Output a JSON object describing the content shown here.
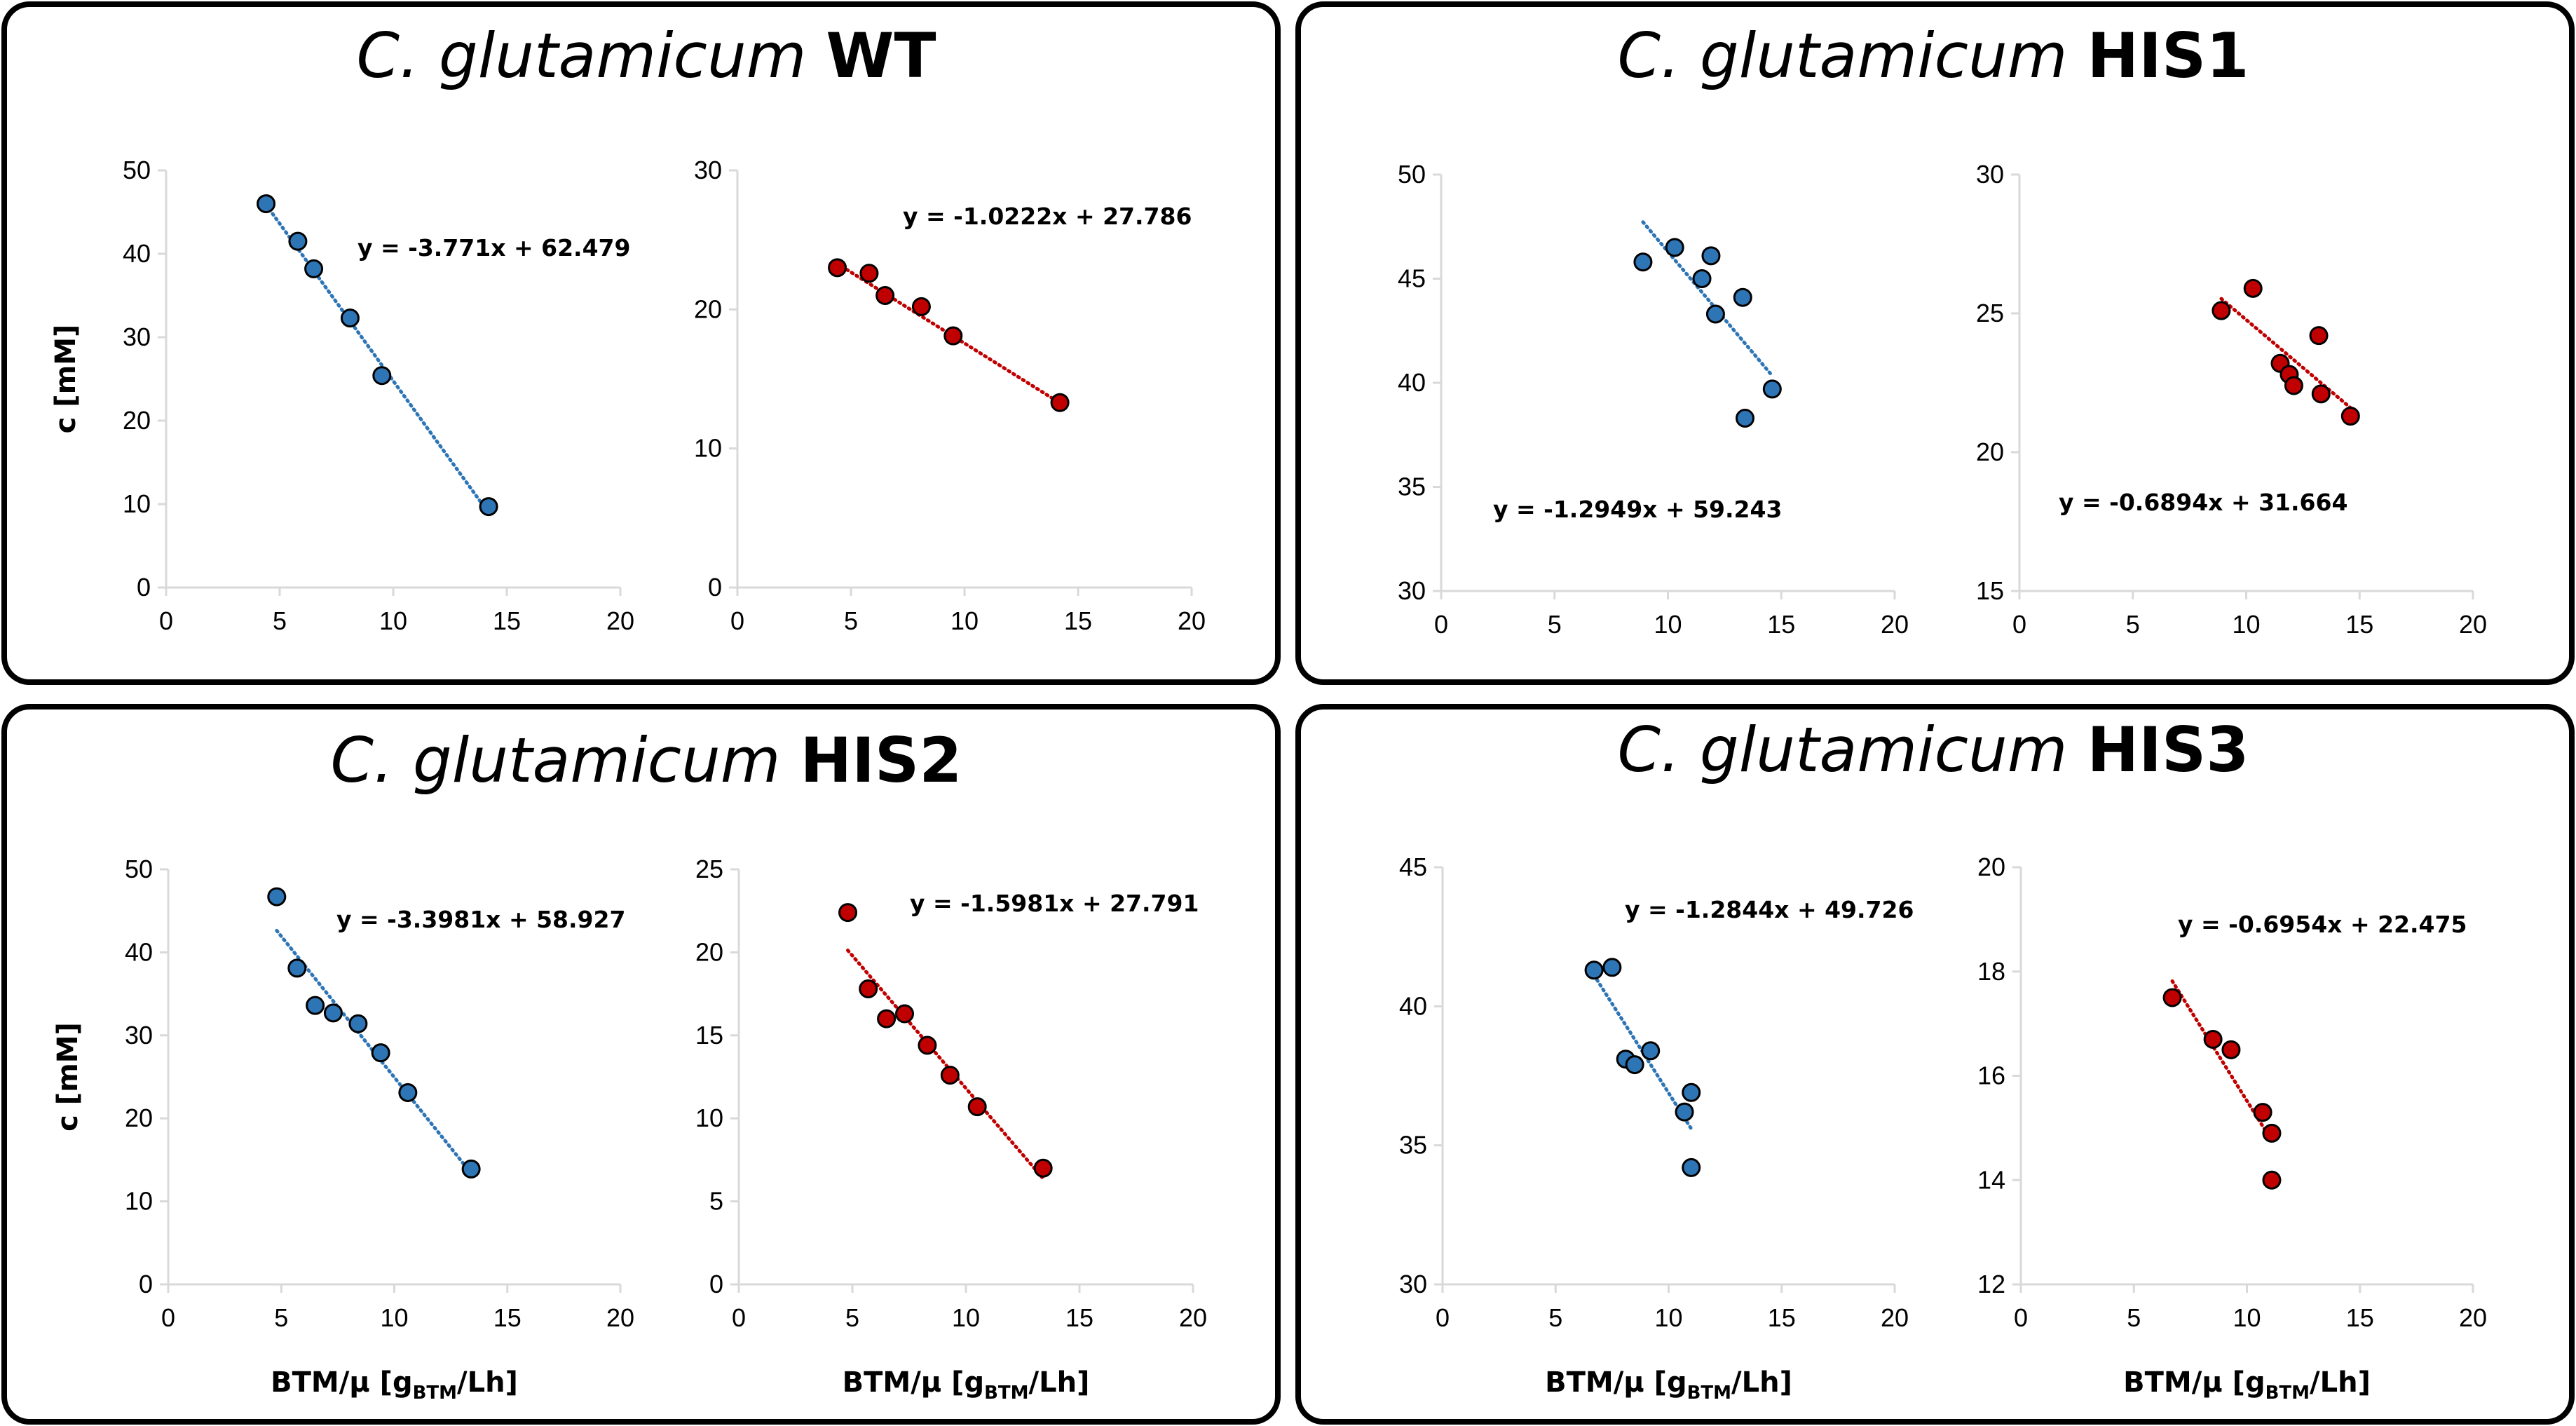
{
  "colors": {
    "blue": "#2E75B6",
    "red": "#C00000",
    "axis": "#D9D9D9",
    "text": "#000000"
  },
  "chart_data": [
    {
      "type": "scatter",
      "species": "C. glutamicum",
      "strain": "WT",
      "ylabel": "c [mM]",
      "xlabel_main": "BTM/μ [g",
      "xlabel_sub": "BTM",
      "xlabel_tail": "/Lh]",
      "subplots": [
        {
          "color": "blue",
          "xlim": [
            0,
            20
          ],
          "ylim": [
            0,
            50
          ],
          "xticks": [
            0,
            5,
            10,
            15,
            20
          ],
          "yticks": [
            0,
            10,
            20,
            30,
            40,
            50
          ],
          "points": [
            [
              4.4,
              46.0
            ],
            [
              5.8,
              41.5
            ],
            [
              6.5,
              38.2
            ],
            [
              8.1,
              32.3
            ],
            [
              9.5,
              25.4
            ],
            [
              14.2,
              9.7
            ]
          ],
          "trend": {
            "slope": -3.771,
            "intercept": 62.479,
            "x0": 4.4,
            "x1": 14.2
          },
          "equation": "y = -3.771x + 62.479"
        },
        {
          "color": "red",
          "xlim": [
            0,
            20
          ],
          "ylim": [
            0,
            30
          ],
          "xticks": [
            0,
            5,
            10,
            15,
            20
          ],
          "yticks": [
            0,
            10,
            20,
            30
          ],
          "points": [
            [
              4.4,
              23.0
            ],
            [
              5.8,
              22.6
            ],
            [
              6.5,
              21.0
            ],
            [
              8.1,
              20.2
            ],
            [
              9.5,
              18.1
            ],
            [
              14.2,
              13.3
            ]
          ],
          "trend": {
            "slope": -1.0222,
            "intercept": 27.786,
            "x0": 4.4,
            "x1": 14.2
          },
          "equation": "y = -1.0222x + 27.786"
        }
      ]
    },
    {
      "type": "scatter",
      "species": "C. glutamicum",
      "strain": "HIS1",
      "ylabel": "",
      "xlabel_main": "",
      "xlabel_sub": "",
      "xlabel_tail": "",
      "subplots": [
        {
          "color": "blue",
          "xlim": [
            0,
            20
          ],
          "ylim": [
            30,
            50
          ],
          "xticks": [
            0,
            5,
            10,
            15,
            20
          ],
          "yticks": [
            30,
            35,
            40,
            45,
            50
          ],
          "points": [
            [
              8.9,
              45.8
            ],
            [
              10.3,
              46.5
            ],
            [
              11.5,
              45.0
            ],
            [
              11.9,
              46.1
            ],
            [
              12.1,
              43.3
            ],
            [
              13.3,
              44.1
            ],
            [
              13.4,
              38.3
            ],
            [
              14.6,
              39.7
            ]
          ],
          "trend": {
            "slope": -1.2949,
            "intercept": 59.243,
            "x0": 8.9,
            "x1": 14.6
          },
          "equation": "y = -1.2949x + 59.243"
        },
        {
          "color": "red",
          "xlim": [
            0,
            20
          ],
          "ylim": [
            15,
            30
          ],
          "xticks": [
            0,
            5,
            10,
            15,
            20
          ],
          "yticks": [
            15,
            20,
            25,
            30
          ],
          "points": [
            [
              8.9,
              25.1
            ],
            [
              10.3,
              25.9
            ],
            [
              11.5,
              23.2
            ],
            [
              11.9,
              22.8
            ],
            [
              12.1,
              22.4
            ],
            [
              13.2,
              24.2
            ],
            [
              13.3,
              22.1
            ],
            [
              14.6,
              21.3
            ]
          ],
          "trend": {
            "slope": -0.6894,
            "intercept": 31.664,
            "x0": 8.9,
            "x1": 14.6
          },
          "equation": "y = -0.6894x + 31.664"
        }
      ]
    },
    {
      "type": "scatter",
      "species": "C. glutamicum",
      "strain": "HIS2",
      "ylabel": "c [mM]",
      "xlabel_main": "BTM/μ [g",
      "xlabel_sub": "BTM",
      "xlabel_tail": "/Lh]",
      "subplots": [
        {
          "color": "blue",
          "xlim": [
            0,
            20
          ],
          "ylim": [
            0,
            50
          ],
          "xticks": [
            0,
            5,
            10,
            15,
            20
          ],
          "yticks": [
            0,
            10,
            20,
            30,
            40,
            50
          ],
          "points": [
            [
              4.8,
              46.7
            ],
            [
              5.7,
              38.1
            ],
            [
              6.5,
              33.6
            ],
            [
              7.3,
              32.7
            ],
            [
              8.4,
              31.4
            ],
            [
              9.4,
              27.9
            ],
            [
              10.6,
              23.1
            ],
            [
              13.4,
              13.9
            ]
          ],
          "trend": {
            "slope": -3.3981,
            "intercept": 58.927,
            "x0": 4.8,
            "x1": 13.4
          },
          "equation": "y = -3.3981x + 58.927"
        },
        {
          "color": "red",
          "xlim": [
            0,
            20
          ],
          "ylim": [
            0,
            25
          ],
          "xticks": [
            0,
            5,
            10,
            15,
            20
          ],
          "yticks": [
            0,
            5,
            10,
            15,
            20,
            25
          ],
          "points": [
            [
              4.8,
              22.4
            ],
            [
              5.7,
              17.8
            ],
            [
              6.5,
              16.0
            ],
            [
              7.3,
              16.3
            ],
            [
              8.3,
              14.4
            ],
            [
              9.3,
              12.6
            ],
            [
              10.5,
              10.7
            ],
            [
              13.4,
              7.0
            ]
          ],
          "trend": {
            "slope": -1.5981,
            "intercept": 27.791,
            "x0": 4.8,
            "x1": 13.4
          },
          "equation": "y = -1.5981x + 27.791"
        }
      ]
    },
    {
      "type": "scatter",
      "species": "C. glutamicum",
      "strain": "HIS3",
      "ylabel": "",
      "xlabel_main": "BTM/μ [g",
      "xlabel_sub": "BTM",
      "xlabel_tail": "/Lh]",
      "subplots": [
        {
          "color": "blue",
          "xlim": [
            0,
            20
          ],
          "ylim": [
            30,
            45
          ],
          "xticks": [
            0,
            5,
            10,
            15,
            20
          ],
          "yticks": [
            30,
            35,
            40,
            45
          ],
          "points": [
            [
              6.7,
              41.3
            ],
            [
              7.5,
              41.4
            ],
            [
              8.1,
              38.1
            ],
            [
              8.5,
              37.9
            ],
            [
              9.2,
              38.4
            ],
            [
              10.7,
              36.2
            ],
            [
              11.0,
              36.9
            ],
            [
              11.0,
              34.2
            ]
          ],
          "trend": {
            "slope": -1.2844,
            "intercept": 49.726,
            "x0": 6.7,
            "x1": 11.0
          },
          "equation": "y = -1.2844x + 49.726"
        },
        {
          "color": "red",
          "xlim": [
            0,
            20
          ],
          "ylim": [
            12,
            20
          ],
          "xticks": [
            0,
            5,
            10,
            15,
            20
          ],
          "yticks": [
            12,
            14,
            16,
            18,
            20
          ],
          "points": [
            [
              6.7,
              17.5
            ],
            [
              8.5,
              16.7
            ],
            [
              9.3,
              16.5
            ],
            [
              10.7,
              15.3
            ],
            [
              11.1,
              14.9
            ],
            [
              11.1,
              14.0
            ]
          ],
          "trend": {
            "slope": -0.6954,
            "intercept": 22.475,
            "x0": 6.7,
            "x1": 11.1
          },
          "equation": "y = -0.6954x + 22.475"
        }
      ]
    }
  ]
}
